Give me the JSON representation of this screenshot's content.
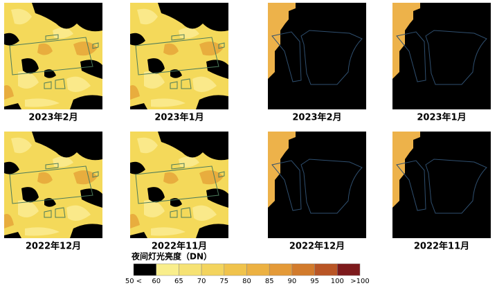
{
  "panels": [
    {
      "caption": "2023年2月"
    },
    {
      "caption": "2023年1月"
    },
    {
      "caption": "2023年2月"
    },
    {
      "caption": "2023年1月"
    },
    {
      "caption": "2022年12月"
    },
    {
      "caption": "2022年11月"
    },
    {
      "caption": "2022年12月"
    },
    {
      "caption": "2022年11月"
    }
  ],
  "legend": {
    "title": "夜间灯光亮度（DN）",
    "colors": [
      "#000000",
      "#f9ee8c",
      "#f6e274",
      "#f3d45e",
      "#f0c34c",
      "#ecb142",
      "#e49a38",
      "#d27b2c",
      "#b95525",
      "#7d1a1c"
    ],
    "labels": [
      "50 <",
      "60",
      "65",
      "70",
      "75",
      "80",
      "85",
      "90",
      "95",
      "100",
      ">100"
    ]
  }
}
